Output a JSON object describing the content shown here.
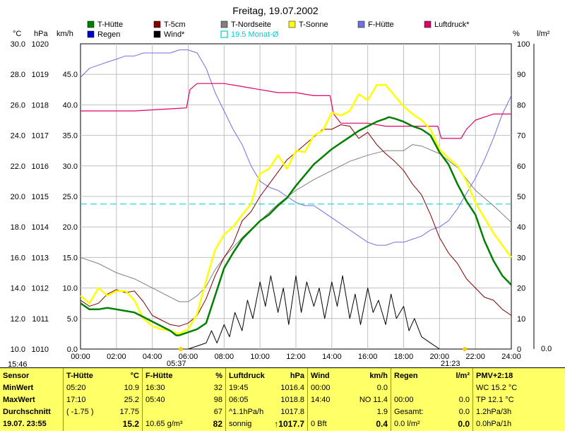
{
  "chart_data": {
    "type": "line",
    "title": "Freitag, 19.07.2002",
    "legend": [
      {
        "name": "T-Hütte",
        "color": "#008000"
      },
      {
        "name": "T-5cm",
        "color": "#800000"
      },
      {
        "name": "T-Nordseite",
        "color": "#808080"
      },
      {
        "name": "T-Sonne",
        "color": "#ffff00"
      },
      {
        "name": "F-Hütte",
        "color": "#7070e0"
      },
      {
        "name": "Luftdruck*",
        "color": "#e0006a"
      },
      {
        "name": "Regen",
        "color": "#0000cc"
      },
      {
        "name": "Wind*",
        "color": "#000000"
      },
      {
        "name": "19.5 Monat-Ø",
        "color": "#00cccc"
      }
    ],
    "axis_units": {
      "temp": "°C",
      "pressure": "hPa",
      "wind": "km/h",
      "humidity": "%",
      "rain": "l/m²"
    },
    "x_ticks": [
      "00:00",
      "02:00",
      "04:00",
      "06:00",
      "08:00",
      "10:00",
      "12:00",
      "14:00",
      "16:00",
      "18:00",
      "20:00",
      "22:00",
      "24:00"
    ],
    "temp_ticks": [
      "30.0",
      "28.0",
      "26.0",
      "24.0",
      "22.0",
      "20.0",
      "18.0",
      "16.0",
      "14.0",
      "12.0",
      "10.0"
    ],
    "pressure_ticks": [
      "1020",
      "1019",
      "1018",
      "1017",
      "1016",
      "1015",
      "1014",
      "1013",
      "1012",
      "1011",
      "1010"
    ],
    "wind_ticks": [
      "45.0",
      "40.0",
      "35.0",
      "30.0",
      "25.0",
      "20.0",
      "15.0",
      "10.0",
      "5.0",
      "0.0"
    ],
    "humidity_ticks": [
      "100",
      "90",
      "80",
      "70",
      "60",
      "50",
      "40",
      "30",
      "20",
      "10",
      "0"
    ],
    "rain_ticks": [
      "0.0"
    ],
    "temp_ylim": [
      10,
      30
    ],
    "monthly_mean_temp": 19.5,
    "sunrise": "05:37",
    "sunset": "21:23",
    "series": [
      {
        "name": "T-Hütte",
        "axis": "temp",
        "x": [
          0,
          0.5,
          1,
          1.5,
          2,
          2.5,
          3,
          3.5,
          4,
          4.5,
          5,
          5.33,
          5.5,
          6,
          6.5,
          7,
          7.5,
          8,
          8.5,
          9,
          9.5,
          10,
          10.5,
          11,
          11.5,
          12,
          12.5,
          13,
          13.5,
          14,
          14.5,
          15,
          15.5,
          16,
          16.5,
          17,
          17.17,
          17.5,
          18,
          18.5,
          19,
          19.5,
          20,
          20.5,
          21,
          21.5,
          22,
          22.5,
          23,
          23.5,
          24
        ],
        "y": [
          13.0,
          12.6,
          12.6,
          12.7,
          12.6,
          12.5,
          12.4,
          12.1,
          11.8,
          11.5,
          11.2,
          10.9,
          10.9,
          11.1,
          11.3,
          11.7,
          13.5,
          15.3,
          16.3,
          17.2,
          17.8,
          18.4,
          18.8,
          19.4,
          19.9,
          20.7,
          21.4,
          22.1,
          22.6,
          23.1,
          23.5,
          23.9,
          24.3,
          24.6,
          24.9,
          25.1,
          25.2,
          25.1,
          24.9,
          24.6,
          24.4,
          24.0,
          22.9,
          22.1,
          20.8,
          19.7,
          18.8,
          17.1,
          15.8,
          14.8,
          14.2
        ]
      },
      {
        "name": "T-5cm",
        "axis": "temp",
        "x": [
          0,
          0.5,
          1,
          1.5,
          2,
          2.5,
          3,
          3.5,
          4,
          4.5,
          5,
          5.5,
          6,
          6.5,
          7,
          7.5,
          8,
          8.5,
          9,
          9.5,
          10,
          10.5,
          11,
          11.5,
          12,
          12.5,
          13,
          13.5,
          14,
          14.5,
          15,
          15.5,
          16,
          16.5,
          17,
          17.5,
          18,
          18.5,
          19,
          19.5,
          20,
          20.5,
          21,
          21.5,
          22,
          22.5,
          23,
          23.5,
          24
        ],
        "y": [
          13.2,
          12.8,
          13.0,
          13.6,
          13.9,
          13.7,
          13.8,
          13.1,
          12.2,
          11.9,
          11.6,
          11.5,
          11.7,
          12.2,
          13.3,
          14.8,
          16.0,
          16.9,
          18.4,
          19.0,
          20.0,
          20.8,
          21.6,
          22.4,
          22.9,
          23.4,
          23.9,
          24.4,
          24.4,
          24.7,
          24.6,
          23.8,
          24.2,
          23.4,
          22.8,
          22.3,
          21.7,
          20.8,
          20.1,
          18.8,
          17.3,
          16.3,
          15.6,
          14.6,
          14.0,
          13.4,
          13.2,
          12.6,
          12.2
        ]
      },
      {
        "name": "T-Nordseite",
        "axis": "temp",
        "x": [
          0,
          1,
          2,
          3,
          4,
          5,
          5.5,
          6,
          6.5,
          7,
          7.5,
          8,
          9,
          10,
          11,
          12,
          13,
          14,
          15,
          16,
          17,
          18,
          18.5,
          19,
          20,
          21,
          22,
          23,
          24
        ],
        "y": [
          16.0,
          15.6,
          15.0,
          14.6,
          14.0,
          13.4,
          13.1,
          13.1,
          13.5,
          14.1,
          15.2,
          16.0,
          17.3,
          18.4,
          19.5,
          20.4,
          21.1,
          21.7,
          22.3,
          22.7,
          23.0,
          23.0,
          23.4,
          23.3,
          22.8,
          21.9,
          20.4,
          19.4,
          18.3
        ]
      },
      {
        "name": "T-Sonne",
        "axis": "temp",
        "x": [
          0,
          0.5,
          1,
          1.5,
          2,
          2.5,
          3,
          3.5,
          4,
          4.5,
          5,
          5.5,
          6,
          6.5,
          7,
          7.5,
          8,
          8.5,
          9,
          9.5,
          10,
          10.5,
          11,
          11.5,
          12,
          12.5,
          13,
          13.5,
          14,
          14.5,
          15,
          15.5,
          16,
          16.5,
          17,
          17.5,
          18,
          18.5,
          19,
          19.5,
          20,
          20.5,
          21,
          21.5,
          22,
          22.5,
          23,
          23.5,
          24
        ],
        "y": [
          13.5,
          13.0,
          14.0,
          13.5,
          13.8,
          13.8,
          13.2,
          12.0,
          11.5,
          11.3,
          11.2,
          11.0,
          11.3,
          12.3,
          14.5,
          16.5,
          17.5,
          18.0,
          18.8,
          19.5,
          21.5,
          21.8,
          22.7,
          21.8,
          23.0,
          22.9,
          24.0,
          24.3,
          25.5,
          25.3,
          25.6,
          26.7,
          26.3,
          27.3,
          27.3,
          26.6,
          25.9,
          25.4,
          25.0,
          24.4,
          23.1,
          22.5,
          22.0,
          21.0,
          19.6,
          18.6,
          17.6,
          16.8,
          16.0
        ]
      },
      {
        "name": "F-Hütte",
        "axis": "humidity",
        "x": [
          0,
          0.5,
          1,
          1.5,
          2,
          2.5,
          3,
          3.5,
          4,
          5,
          5.5,
          6,
          6.5,
          7,
          7.5,
          8,
          8.5,
          9,
          9.5,
          10,
          10.5,
          11,
          11.5,
          12,
          12.5,
          13,
          13.5,
          14,
          15,
          15.5,
          16,
          16.5,
          17,
          17.5,
          18,
          18.5,
          19,
          19.5,
          20,
          20.5,
          21,
          21.5,
          22,
          22.5,
          23,
          23.5,
          24
        ],
        "y": [
          89,
          92,
          93,
          94,
          95,
          96,
          96,
          97,
          97,
          97,
          98,
          98,
          97,
          92,
          84,
          78,
          72,
          67,
          60,
          55,
          53,
          52,
          50,
          48,
          47,
          47,
          45,
          43,
          39,
          37,
          35,
          34,
          34,
          35,
          35,
          36,
          37,
          39,
          40,
          42,
          46,
          51,
          56,
          62,
          69,
          77,
          83
        ]
      },
      {
        "name": "Luftdruck*",
        "axis": "pressure",
        "x": [
          0,
          3,
          5.9,
          6.1,
          6.5,
          7,
          8,
          9,
          10,
          11,
          12,
          13,
          13.9,
          14.1,
          14.5,
          15,
          16,
          17,
          18,
          19,
          19.9,
          20.1,
          21,
          21.2,
          21.5,
          22,
          22.5,
          23,
          23.5,
          24
        ],
        "y": [
          1017.8,
          1017.8,
          1017.9,
          1018.5,
          1018.7,
          1018.7,
          1018.7,
          1018.6,
          1018.5,
          1018.4,
          1018.4,
          1018.3,
          1018.3,
          1017.7,
          1017.4,
          1017.4,
          1017.4,
          1017.3,
          1017.3,
          1017.3,
          1017.3,
          1016.9,
          1016.9,
          1016.9,
          1017.2,
          1017.5,
          1017.6,
          1017.7,
          1017.7,
          1017.7
        ]
      },
      {
        "name": "Wind*",
        "axis": "wind",
        "x": [
          0,
          6,
          7,
          7.3,
          7.6,
          8,
          8.3,
          8.6,
          9,
          9.3,
          9.6,
          10,
          10.3,
          10.6,
          11,
          11.3,
          11.6,
          12,
          12.3,
          12.6,
          13,
          13.3,
          13.6,
          14,
          14.3,
          14.6,
          15,
          15.3,
          15.6,
          16,
          16.3,
          16.6,
          17,
          17.3,
          17.6,
          18,
          18.3,
          18.6,
          19,
          19.5,
          20,
          21,
          24
        ],
        "y": [
          0,
          0,
          1,
          3,
          1,
          4,
          2,
          6,
          3,
          8,
          5,
          11,
          7,
          12,
          6,
          10,
          4,
          12,
          6,
          11,
          7,
          10,
          5,
          11,
          7,
          12,
          5,
          9,
          4,
          10,
          6,
          8,
          4,
          9,
          5,
          7,
          3,
          5,
          2,
          1,
          0,
          0,
          0
        ]
      },
      {
        "name": "19.5 Monat-Ø",
        "axis": "temp",
        "x": [
          0,
          24
        ],
        "y": [
          19.5,
          19.5
        ]
      }
    ]
  },
  "footer": {
    "time_left": "15:46",
    "sunrise_label": "05:37",
    "sunset_label": "21:23",
    "rain_zero": "0.0"
  },
  "table": {
    "col0": {
      "h": "Sensor",
      "r1": "MinWert",
      "r2": "MaxWert",
      "r3": "Durchschnitt",
      "r4": "19.07.  23:55"
    },
    "col1": {
      "h1": "T-Hütte",
      "h2": "°C",
      "r1a": "05:20",
      "r1b": "10.9",
      "r2a": "17:10",
      "r2b": "25.2",
      "r3a": "( -1.75 )",
      "r3b": "17.75",
      "r4b": "15.2"
    },
    "col2": {
      "h1": "F-Hütte",
      "h2": "%",
      "r1a": "16:30",
      "r1b": "32",
      "r2a": "05:40",
      "r2b": "98",
      "r3b": "67",
      "r4a": "10.65 g/m³",
      "r4b": "82"
    },
    "col3": {
      "h1": "Luftdruck",
      "h2": "hPa",
      "r1a": "19:45",
      "r1b": "1016.4",
      "r2a": "06:05",
      "r2b": "1018.8",
      "r3a": "^1.1hPa/h",
      "r3b": "1017.8",
      "r4a": "sonnig",
      "r4b": "↑1017.7"
    },
    "col4": {
      "h1": "Wind",
      "h2": "km/h",
      "r1a": "00:00",
      "r1b": "0.0",
      "r2a": "14:40",
      "r2b": "NO 11.4",
      "r3b": "1.9",
      "r4a": "0 Bft",
      "r4b": "0.4"
    },
    "col5": {
      "h1": "Regen",
      "h2": "l/m²",
      "r2a": "00:00",
      "r2b": "0.0",
      "r3a": "Gesamt:",
      "r3b": "0.0",
      "r4a": "0.0 l/m²",
      "r4b": "0.0"
    },
    "col6": {
      "h1": "PMV+2:18",
      "r1": "WC 15.2 °C",
      "r2": "TP 12.1 °C",
      "r3": "1.2hPa/3h",
      "r4": "0.0hPa/1h"
    }
  }
}
